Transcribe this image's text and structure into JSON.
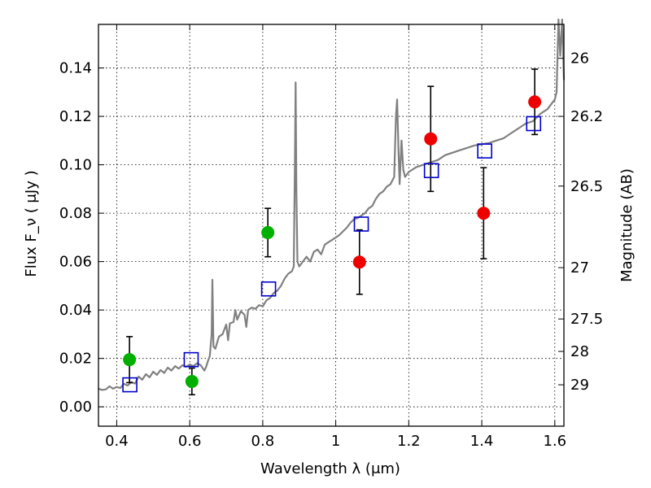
{
  "chart_data": {
    "type": "scatter",
    "xlabel": "Wavelength  λ (μm)",
    "ylabel": "Flux  F_ν  ( μJy )",
    "ylabel_right": "Magnitude (AB)",
    "xlim": [
      0.35,
      1.625
    ],
    "ylim": [
      -0.008,
      0.158
    ],
    "grid": true,
    "x_ticks": [
      0.4,
      0.6,
      0.8,
      1.0,
      1.2,
      1.4,
      1.6
    ],
    "x_tick_labels": [
      "0.4",
      "0.6",
      "0.8",
      "1",
      "1.2",
      "1.4",
      "1.6"
    ],
    "y_ticks": [
      0.0,
      0.02,
      0.04,
      0.06,
      0.08,
      0.1,
      0.12,
      0.14
    ],
    "y_tick_labels": [
      "0.00",
      "0.02",
      "0.04",
      "0.06",
      "0.08",
      "0.10",
      "0.12",
      "0.14"
    ],
    "right_ticks": [
      {
        "label": "26",
        "flux": 0.144
      },
      {
        "label": "26.2",
        "flux": 0.12
      },
      {
        "label": "26.5",
        "flux": 0.0912
      },
      {
        "label": "27",
        "flux": 0.0575
      },
      {
        "label": "27.5",
        "flux": 0.0363
      },
      {
        "label": "28",
        "flux": 0.0229
      },
      {
        "label": "29",
        "flux": 0.0091
      }
    ],
    "series": [
      {
        "kind": "green-points",
        "color": "#00b000",
        "points": [
          {
            "x": 0.435,
            "y": 0.0195,
            "err_lo": 0.0095,
            "err_hi": 0.0095
          },
          {
            "x": 0.606,
            "y": 0.0105,
            "err_lo": 0.0055,
            "err_hi": 0.0055
          },
          {
            "x": 0.814,
            "y": 0.072,
            "err_lo": 0.01,
            "err_hi": 0.01
          }
        ]
      },
      {
        "kind": "red-points",
        "color": "#ee0000",
        "points": [
          {
            "x": 1.065,
            "y": 0.0598,
            "err_lo": 0.0133,
            "err_hi": 0.0133
          },
          {
            "x": 1.26,
            "y": 0.1107,
            "err_lo": 0.0217,
            "err_hi": 0.0217
          },
          {
            "x": 1.405,
            "y": 0.08,
            "err_lo": 0.0188,
            "err_hi": 0.0188
          },
          {
            "x": 1.545,
            "y": 0.126,
            "err_lo": 0.0135,
            "err_hi": 0.0135
          }
        ]
      },
      {
        "kind": "blue-squares",
        "color": "#0000cc",
        "points": [
          {
            "x": 0.436,
            "y": 0.0091
          },
          {
            "x": 0.604,
            "y": 0.0195
          },
          {
            "x": 0.816,
            "y": 0.0487
          },
          {
            "x": 1.07,
            "y": 0.0755
          },
          {
            "x": 1.262,
            "y": 0.0976
          },
          {
            "x": 1.408,
            "y": 0.1057
          },
          {
            "x": 1.542,
            "y": 0.117
          }
        ]
      },
      {
        "kind": "gray-spectrum",
        "color": "#808080",
        "points": [
          [
            0.35,
            0.0075
          ],
          [
            0.36,
            0.007
          ],
          [
            0.37,
            0.0072
          ],
          [
            0.38,
            0.0085
          ],
          [
            0.39,
            0.0075
          ],
          [
            0.4,
            0.0082
          ],
          [
            0.41,
            0.0078
          ],
          [
            0.42,
            0.0095
          ],
          [
            0.43,
            0.0088
          ],
          [
            0.44,
            0.0102
          ],
          [
            0.45,
            0.0096
          ],
          [
            0.46,
            0.0125
          ],
          [
            0.47,
            0.0112
          ],
          [
            0.48,
            0.0135
          ],
          [
            0.49,
            0.0122
          ],
          [
            0.5,
            0.0145
          ],
          [
            0.51,
            0.0132
          ],
          [
            0.52,
            0.0152
          ],
          [
            0.53,
            0.014
          ],
          [
            0.54,
            0.0162
          ],
          [
            0.55,
            0.015
          ],
          [
            0.56,
            0.0168
          ],
          [
            0.57,
            0.0158
          ],
          [
            0.58,
            0.0172
          ],
          [
            0.59,
            0.0165
          ],
          [
            0.6,
            0.0175
          ],
          [
            0.61,
            0.0168
          ],
          [
            0.62,
            0.018
          ],
          [
            0.63,
            0.0172
          ],
          [
            0.64,
            0.015
          ],
          [
            0.645,
            0.0165
          ],
          [
            0.65,
            0.019
          ],
          [
            0.655,
            0.021
          ],
          [
            0.66,
            0.03
          ],
          [
            0.662,
            0.0525
          ],
          [
            0.665,
            0.025
          ],
          [
            0.67,
            0.024
          ],
          [
            0.68,
            0.029
          ],
          [
            0.69,
            0.03
          ],
          [
            0.7,
            0.034
          ],
          [
            0.705,
            0.0275
          ],
          [
            0.71,
            0.0345
          ],
          [
            0.72,
            0.035
          ],
          [
            0.725,
            0.04
          ],
          [
            0.73,
            0.036
          ],
          [
            0.74,
            0.0395
          ],
          [
            0.75,
            0.038
          ],
          [
            0.755,
            0.033
          ],
          [
            0.76,
            0.04
          ],
          [
            0.77,
            0.041
          ],
          [
            0.78,
            0.0405
          ],
          [
            0.79,
            0.042
          ],
          [
            0.8,
            0.0415
          ],
          [
            0.81,
            0.044
          ],
          [
            0.82,
            0.045
          ],
          [
            0.83,
            0.047
          ],
          [
            0.84,
            0.048
          ],
          [
            0.85,
            0.05
          ],
          [
            0.86,
            0.053
          ],
          [
            0.87,
            0.055
          ],
          [
            0.88,
            0.056
          ],
          [
            0.885,
            0.058
          ],
          [
            0.888,
            0.1
          ],
          [
            0.89,
            0.134
          ],
          [
            0.892,
            0.09
          ],
          [
            0.895,
            0.06
          ],
          [
            0.9,
            0.058
          ],
          [
            0.91,
            0.06
          ],
          [
            0.92,
            0.062
          ],
          [
            0.93,
            0.06
          ],
          [
            0.94,
            0.064
          ],
          [
            0.95,
            0.065
          ],
          [
            0.96,
            0.063
          ],
          [
            0.97,
            0.067
          ],
          [
            0.98,
            0.068
          ],
          [
            0.99,
            0.069
          ],
          [
            1.0,
            0.07
          ],
          [
            1.01,
            0.071
          ],
          [
            1.02,
            0.0725
          ],
          [
            1.03,
            0.074
          ],
          [
            1.04,
            0.076
          ],
          [
            1.05,
            0.0775
          ],
          [
            1.06,
            0.078
          ],
          [
            1.07,
            0.079
          ],
          [
            1.08,
            0.08
          ],
          [
            1.09,
            0.082
          ],
          [
            1.1,
            0.083
          ],
          [
            1.11,
            0.086
          ],
          [
            1.12,
            0.088
          ],
          [
            1.13,
            0.089
          ],
          [
            1.14,
            0.091
          ],
          [
            1.15,
            0.092
          ],
          [
            1.16,
            0.095
          ],
          [
            1.165,
            0.12
          ],
          [
            1.168,
            0.127
          ],
          [
            1.172,
            0.105
          ],
          [
            1.175,
            0.092
          ],
          [
            1.18,
            0.11
          ],
          [
            1.185,
            0.098
          ],
          [
            1.19,
            0.095
          ],
          [
            1.2,
            0.097
          ],
          [
            1.22,
            0.099
          ],
          [
            1.24,
            0.1
          ],
          [
            1.26,
            0.101
          ],
          [
            1.28,
            0.102
          ],
          [
            1.3,
            0.104
          ],
          [
            1.32,
            0.105
          ],
          [
            1.34,
            0.106
          ],
          [
            1.36,
            0.107
          ],
          [
            1.38,
            0.108
          ],
          [
            1.4,
            0.1085
          ],
          [
            1.42,
            0.109
          ],
          [
            1.44,
            0.11
          ],
          [
            1.46,
            0.111
          ],
          [
            1.48,
            0.113
          ],
          [
            1.5,
            0.115
          ],
          [
            1.52,
            0.117
          ],
          [
            1.54,
            0.118
          ],
          [
            1.56,
            0.121
          ],
          [
            1.58,
            0.123
          ],
          [
            1.59,
            0.125
          ],
          [
            1.6,
            0.127
          ],
          [
            1.605,
            0.13
          ],
          [
            1.61,
            0.16
          ],
          [
            1.615,
            0.145
          ],
          [
            1.62,
            0.16
          ],
          [
            1.625,
            0.135
          ]
        ]
      }
    ]
  }
}
